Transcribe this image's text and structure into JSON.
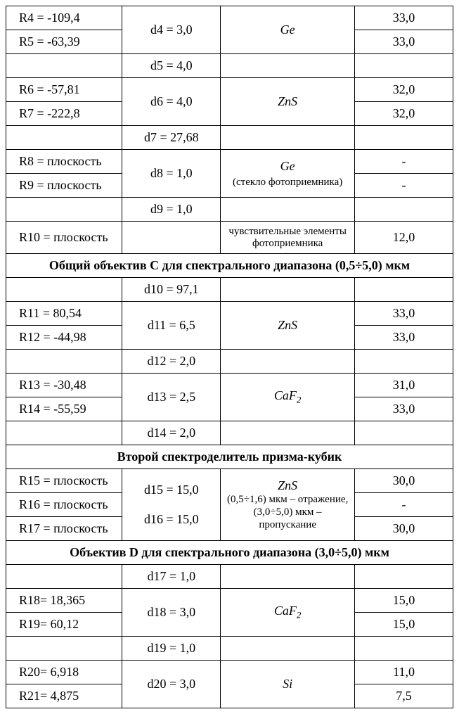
{
  "row1": {
    "c1": "R4 = -109,4",
    "c2": "d4 = 3,0",
    "c3": "Ge",
    "c4": "33,0"
  },
  "row2": {
    "c1": "R5 = -63,39",
    "c4": "33,0"
  },
  "row3": {
    "c2": "d5 = 4,0"
  },
  "row4": {
    "c1": "R6 = -57,81",
    "c2": "d6 = 4,0",
    "c3": "ZnS",
    "c4": "32,0"
  },
  "row5": {
    "c1": "R7 = -222,8",
    "c4": "32,0"
  },
  "row6": {
    "c2": "d7 = 27,68"
  },
  "row7": {
    "c1": "R8 = плоскость",
    "c2": "d8 = 1,0",
    "c3a": "Ge",
    "c3b": "(стекло фотоприемника)",
    "c4": "-"
  },
  "row8": {
    "c1": "R9 = плоскость",
    "c4": "-"
  },
  "row9": {
    "c2": "d9 = 1,0"
  },
  "row10": {
    "c1": "R10 = плоскость",
    "c3": "чувствительные элементы фотоприемника",
    "c4": "12,0"
  },
  "hdr1": "Общий объектив С для спектрального диапазона (0,5÷5,0) мкм",
  "row11": {
    "c2": "d10 = 97,1"
  },
  "row12": {
    "c1": "R11 = 80,54",
    "c2": "d11 = 6,5",
    "c3": "ZnS",
    "c4": "33,0"
  },
  "row13": {
    "c1": "R12 = -44,98",
    "c4": "33,0"
  },
  "row14": {
    "c2": "d12 = 2,0"
  },
  "row15": {
    "c1": "R13 = -30,48",
    "c2": "d13 = 2,5",
    "c3": "CaF",
    "c3sub": "2",
    "c4": "31,0"
  },
  "row16": {
    "c1": "R14 = -55,59",
    "c4": "33,0"
  },
  "row17": {
    "c2": "d14 = 2,0"
  },
  "hdr2": "Второй спектроделитель призма-кубик",
  "row18": {
    "c1": "R15 = плоскость",
    "c2a": "d15 = 15,0",
    "c2b": "d16 = 15,0",
    "c3a": "ZnS",
    "c3b": "(0,5÷1,6) мкм – отражение,",
    "c3c": "(3,0÷5,0) мкм – пропускание",
    "c4": "30,0"
  },
  "row19": {
    "c1": "R16 = плоскость",
    "c4": "-"
  },
  "row20": {
    "c1": "R17 = плоскость",
    "c4": "30,0"
  },
  "hdr3": "Объектив D для спектрального диапазона (3,0÷5,0) мкм",
  "row21": {
    "c2": "d17 = 1,0"
  },
  "row22": {
    "c1": "R18= 18,365",
    "c2": "d18 = 3,0",
    "c3": "CaF",
    "c3sub": "2",
    "c4": "15,0"
  },
  "row23": {
    "c1": "R19= 60,12",
    "c4": "15,0"
  },
  "row24": {
    "c2": "d19 = 1,0"
  },
  "row25": {
    "c1": "R20= 6,918",
    "c2": "d20 = 3,0",
    "c3": "Si",
    "c4": "11,0"
  },
  "row26": {
    "c1": "R21= 4,875",
    "c4": "7,5"
  }
}
